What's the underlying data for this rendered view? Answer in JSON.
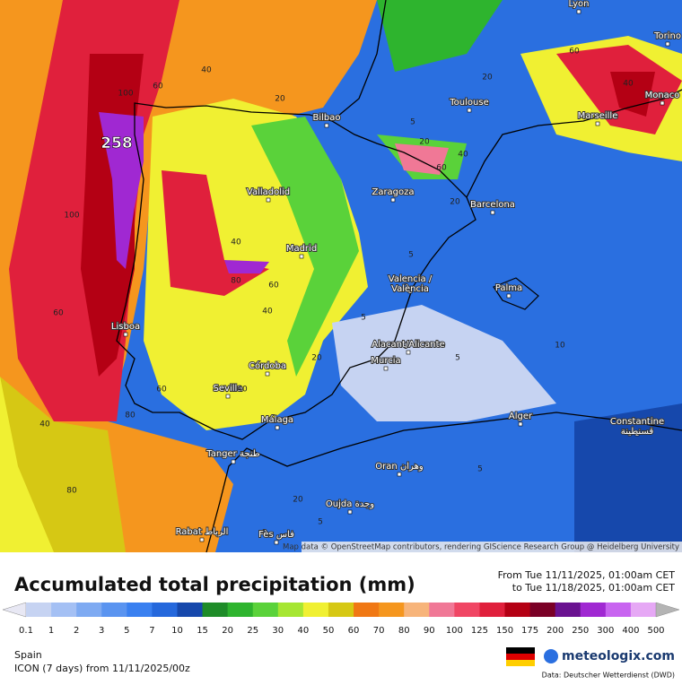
{
  "map": {
    "peak_label": "258",
    "attribution": "Map data © OpenStreetMap contributors, rendering GIScience Research Group @ Heidelberg University",
    "cities": [
      "Lyon",
      "Torino",
      "Toulouse",
      "Monaco",
      "Marseille",
      "Bilbao",
      "Zaragoza",
      "Barcelona",
      "Valladolid",
      "Madrid",
      "Valencia /\nValència",
      "Palma",
      "Lisboa",
      "Alacant/Alicante",
      "Murcia",
      "Córdoba",
      "Sevilla",
      "Málaga",
      "Alger",
      "Constantine\nقسنطينة",
      "Tanger طنجة",
      "Oran وهران",
      "Oujda وجدة",
      "Rabat الرباط",
      "Fès فاس"
    ],
    "contour_labels": [
      40,
      60,
      100,
      20,
      20,
      60,
      40,
      5,
      20,
      60,
      40,
      20,
      40,
      80,
      60,
      40,
      20,
      5,
      5,
      5,
      60,
      40,
      80,
      60,
      40,
      20,
      5,
      5,
      10,
      80,
      100
    ]
  },
  "footer": {
    "title": "Accumulated total precipitation (mm)",
    "period_from": "From Tue 11/11/2025, 01:00am CET",
    "period_to": "to Tue 11/18/2025, 01:00am CET",
    "region": "Spain",
    "model": "ICON (7 days)  from  11/11/2025/00z",
    "brand": "meteologix.com",
    "source": "Data: Deutscher Wetterdienst  (DWD)"
  },
  "legend": {
    "values": [
      0.1,
      1,
      2,
      3,
      5,
      7,
      10,
      15,
      20,
      25,
      30,
      40,
      50,
      60,
      70,
      80,
      90,
      100,
      125,
      150,
      175,
      200,
      250,
      300,
      400,
      500
    ],
    "colors": [
      "#c6d3f2",
      "#a4c0f4",
      "#7eaaf2",
      "#5a94f0",
      "#3a80f0",
      "#2568dc",
      "#1648ac",
      "#1e8c28",
      "#2eb42e",
      "#5ad23a",
      "#a6e632",
      "#f0f032",
      "#d6c814",
      "#f07814",
      "#f5961e",
      "#f7b47a",
      "#f07896",
      "#f04664",
      "#e0203c",
      "#b40014",
      "#7a0026",
      "#6a1290",
      "#a028d2",
      "#c864f0",
      "#e6a8f5",
      "#f5e0f5"
    ],
    "under_color": "#e8e8f4",
    "over_color": "#b4b4b4"
  }
}
